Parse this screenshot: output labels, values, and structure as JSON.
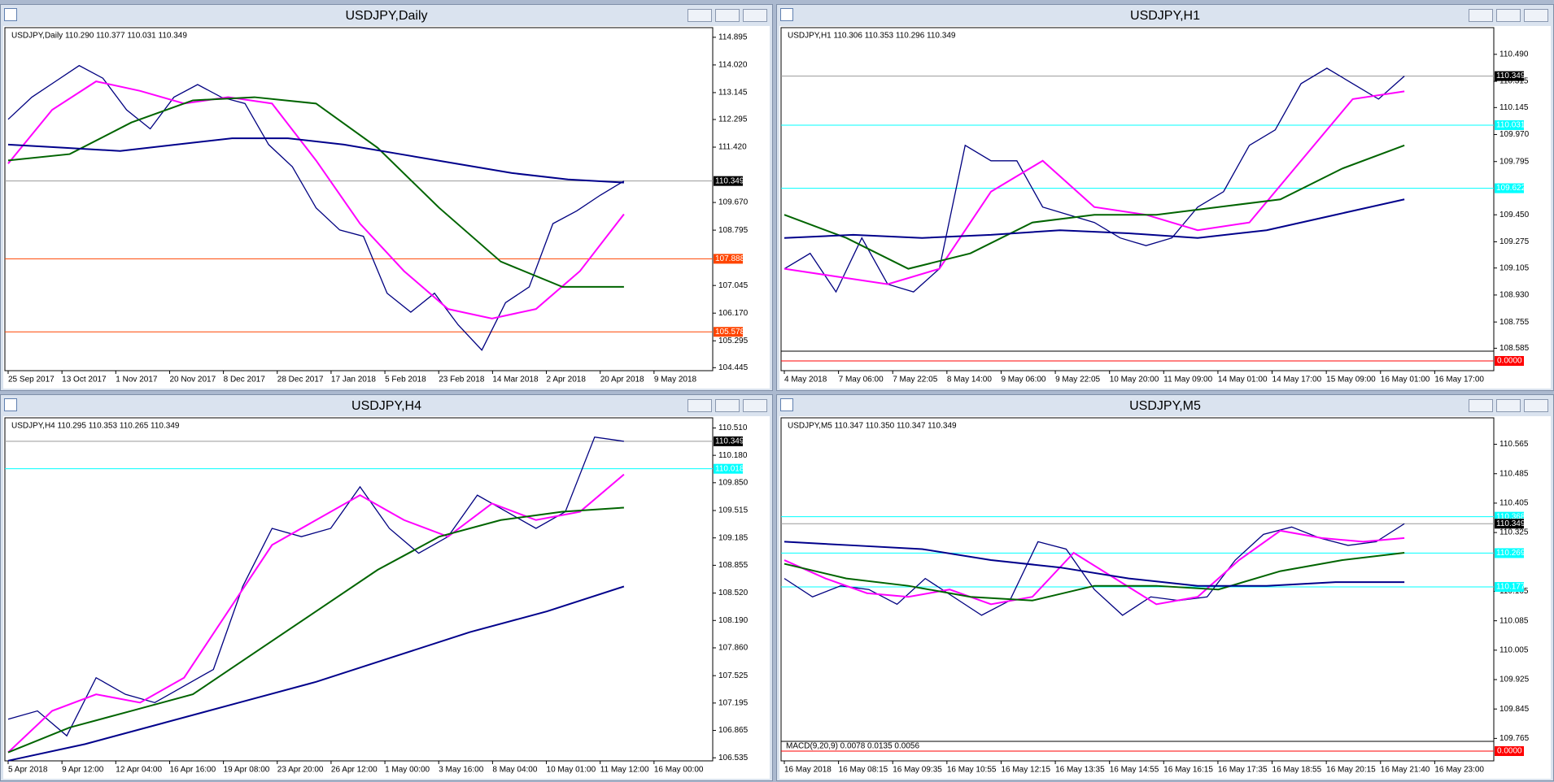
{
  "windows": [
    {
      "title": "USDJPY,Daily",
      "info": "USDJPY,Daily  110.290 110.377 110.031 110.349",
      "ylim": [
        104.35,
        115.2
      ],
      "yticks": [
        "114.895",
        "114.020",
        "113.145",
        "112.295",
        "111.420",
        "109.670",
        "108.795",
        "107.045",
        "106.170",
        "105.295",
        "104.445"
      ],
      "xlabels": [
        "25 Sep 2017",
        "13 Oct 2017",
        "1 Nov 2017",
        "20 Nov 2017",
        "8 Dec 2017",
        "28 Dec 2017",
        "17 Jan 2018",
        "5 Feb 2018",
        "23 Feb 2018",
        "14 Mar 2018",
        "2 Apr 2018",
        "20 Apr 2018",
        "9 May 2018"
      ],
      "price_labels": [
        {
          "label": "110.349",
          "color": "#000000"
        },
        {
          "label": "107.888",
          "color": "#ff4500"
        },
        {
          "label": "105.578",
          "color": "#ff4500"
        }
      ],
      "series": [
        {
          "color": "#000080",
          "values": [
            112.3,
            113.0,
            113.5,
            114.0,
            113.6,
            112.6,
            112.0,
            113.0,
            113.4,
            113.0,
            112.8,
            111.5,
            110.8,
            109.5,
            108.8,
            108.6,
            106.8,
            106.2,
            106.8,
            105.8,
            105.0,
            106.5,
            107.0,
            109.0,
            109.4,
            109.9,
            110.349
          ]
        },
        {
          "color": "#ff00ff",
          "values": [
            110.9,
            112.6,
            113.5,
            113.2,
            112.8,
            113.0,
            112.8,
            111.0,
            109.0,
            107.5,
            106.3,
            106.0,
            106.3,
            107.5,
            109.3
          ]
        },
        {
          "color": "#006400",
          "values": [
            111.0,
            111.2,
            112.2,
            112.9,
            113.0,
            112.8,
            111.4,
            109.5,
            107.8,
            107.0,
            107.0
          ]
        },
        {
          "color": "#00008b",
          "values": [
            111.5,
            111.4,
            111.3,
            111.5,
            111.7,
            111.7,
            111.5,
            111.2,
            110.9,
            110.6,
            110.4,
            110.3
          ]
        }
      ]
    },
    {
      "title": "USDJPY,H1",
      "info": "USDJPY,H1  110.306 110.353 110.296 110.349",
      "ylim": [
        108.566,
        110.663
      ],
      "yticks": [
        "110.490",
        "110.315",
        "110.145",
        "109.970",
        "109.795",
        "109.450",
        "109.275",
        "109.105",
        "108.930",
        "108.755",
        "108.585"
      ],
      "xlabels": [
        "4 May 2018",
        "7 May 06:00",
        "7 May 22:05",
        "8 May 14:00",
        "9 May 06:00",
        "9 May 22:05",
        "10 May 20:00",
        "11 May 09:00",
        "14 May 01:00",
        "14 May 17:00",
        "15 May 09:00",
        "16 May 01:00",
        "16 May 17:00"
      ],
      "price_labels": [
        {
          "label": "110.349",
          "color": "#000000"
        },
        {
          "label": "110.031",
          "color": "#00ffff"
        },
        {
          "label": "109.622",
          "color": "#00ffff"
        }
      ],
      "indicator": {
        "label": "0.0000"
      },
      "series": [
        {
          "color": "#000080",
          "values": [
            109.1,
            109.2,
            108.95,
            109.3,
            109.0,
            108.95,
            109.1,
            109.9,
            109.8,
            109.8,
            109.5,
            109.45,
            109.4,
            109.3,
            109.25,
            109.3,
            109.5,
            109.6,
            109.9,
            110.0,
            110.3,
            110.4,
            110.3,
            110.2,
            110.349
          ]
        },
        {
          "color": "#ff00ff",
          "values": [
            109.1,
            109.05,
            109.0,
            109.1,
            109.6,
            109.8,
            109.5,
            109.45,
            109.35,
            109.4,
            109.8,
            110.2,
            110.25
          ]
        },
        {
          "color": "#006400",
          "values": [
            109.45,
            109.3,
            109.1,
            109.2,
            109.4,
            109.45,
            109.45,
            109.5,
            109.55,
            109.75,
            109.9
          ]
        },
        {
          "color": "#00008b",
          "values": [
            109.3,
            109.32,
            109.3,
            109.32,
            109.35,
            109.33,
            109.3,
            109.35,
            109.45,
            109.55
          ]
        }
      ]
    },
    {
      "title": "USDJPY,H4",
      "info": "USDJPY,H4  110.295 110.353 110.265 110.349",
      "ylim": [
        106.498,
        110.632
      ],
      "yticks": [
        "110.510",
        "110.180",
        "109.850",
        "109.515",
        "109.185",
        "108.855",
        "108.520",
        "108.190",
        "107.860",
        "107.525",
        "107.195",
        "106.865",
        "106.535"
      ],
      "xlabels": [
        "5 Apr 2018",
        "9 Apr 12:00",
        "12 Apr 04:00",
        "16 Apr 16:00",
        "19 Apr 08:00",
        "23 Apr 20:00",
        "26 Apr 12:00",
        "1 May 00:00",
        "3 May 16:00",
        "8 May 04:00",
        "10 May 01:00",
        "11 May 12:00",
        "16 May 00:00"
      ],
      "price_labels": [
        {
          "label": "110.349",
          "color": "#000000"
        },
        {
          "label": "110.018",
          "color": "#00ffff"
        }
      ],
      "series": [
        {
          "color": "#000080",
          "values": [
            107.0,
            107.1,
            106.8,
            107.5,
            107.3,
            107.2,
            107.4,
            107.6,
            108.6,
            109.3,
            109.2,
            109.3,
            109.8,
            109.3,
            109.0,
            109.2,
            109.7,
            109.5,
            109.3,
            109.5,
            110.4,
            110.349
          ]
        },
        {
          "color": "#ff00ff",
          "values": [
            106.6,
            107.1,
            107.3,
            107.2,
            107.5,
            108.3,
            109.1,
            109.4,
            109.7,
            109.4,
            109.2,
            109.6,
            109.4,
            109.5,
            109.95
          ]
        },
        {
          "color": "#006400",
          "values": [
            106.6,
            106.9,
            107.1,
            107.3,
            107.8,
            108.3,
            108.8,
            109.2,
            109.4,
            109.5,
            109.55
          ]
        },
        {
          "color": "#00008b",
          "values": [
            106.5,
            106.7,
            106.95,
            107.2,
            107.45,
            107.75,
            108.05,
            108.3,
            108.6
          ]
        }
      ]
    },
    {
      "title": "USDJPY,M5",
      "info": "USDJPY,M5  110.347 110.350 110.347 110.349",
      "ylim": [
        109.757,
        110.637
      ],
      "yticks": [
        "110.565",
        "110.485",
        "110.405",
        "110.325",
        "110.165",
        "110.085",
        "110.005",
        "109.925",
        "109.845",
        "109.765"
      ],
      "xlabels": [
        "16 May 2018",
        "16 May 08:15",
        "16 May 09:35",
        "16 May 10:55",
        "16 May 12:15",
        "16 May 13:35",
        "16 May 14:55",
        "16 May 16:15",
        "16 May 17:35",
        "16 May 18:55",
        "16 May 20:15",
        "16 May 21:40",
        "16 May 23:00"
      ],
      "price_labels": [
        {
          "label": "110.368",
          "color": "#00ffff"
        },
        {
          "label": "110.349",
          "color": "#000000"
        },
        {
          "label": "110.269",
          "color": "#00ffff"
        },
        {
          "label": "110.177",
          "color": "#00ffff"
        }
      ],
      "indicator": {
        "label": "0.0000",
        "text": "MACD(9,20,9) 0.0078 0.0135 0.0056"
      },
      "series": [
        {
          "color": "#000080",
          "values": [
            110.2,
            110.15,
            110.18,
            110.17,
            110.13,
            110.2,
            110.15,
            110.1,
            110.14,
            110.3,
            110.28,
            110.17,
            110.1,
            110.15,
            110.14,
            110.15,
            110.25,
            110.32,
            110.34,
            110.31,
            110.29,
            110.3,
            110.349
          ]
        },
        {
          "color": "#ff00ff",
          "values": [
            110.25,
            110.2,
            110.16,
            110.15,
            110.17,
            110.13,
            110.15,
            110.27,
            110.2,
            110.13,
            110.15,
            110.25,
            110.33,
            110.31,
            110.3,
            110.31
          ]
        },
        {
          "color": "#006400",
          "values": [
            110.24,
            110.2,
            110.18,
            110.15,
            110.14,
            110.18,
            110.18,
            110.17,
            110.22,
            110.25,
            110.27
          ]
        },
        {
          "color": "#00008b",
          "values": [
            110.3,
            110.29,
            110.28,
            110.25,
            110.23,
            110.2,
            110.18,
            110.18,
            110.19,
            110.19
          ]
        }
      ]
    }
  ]
}
